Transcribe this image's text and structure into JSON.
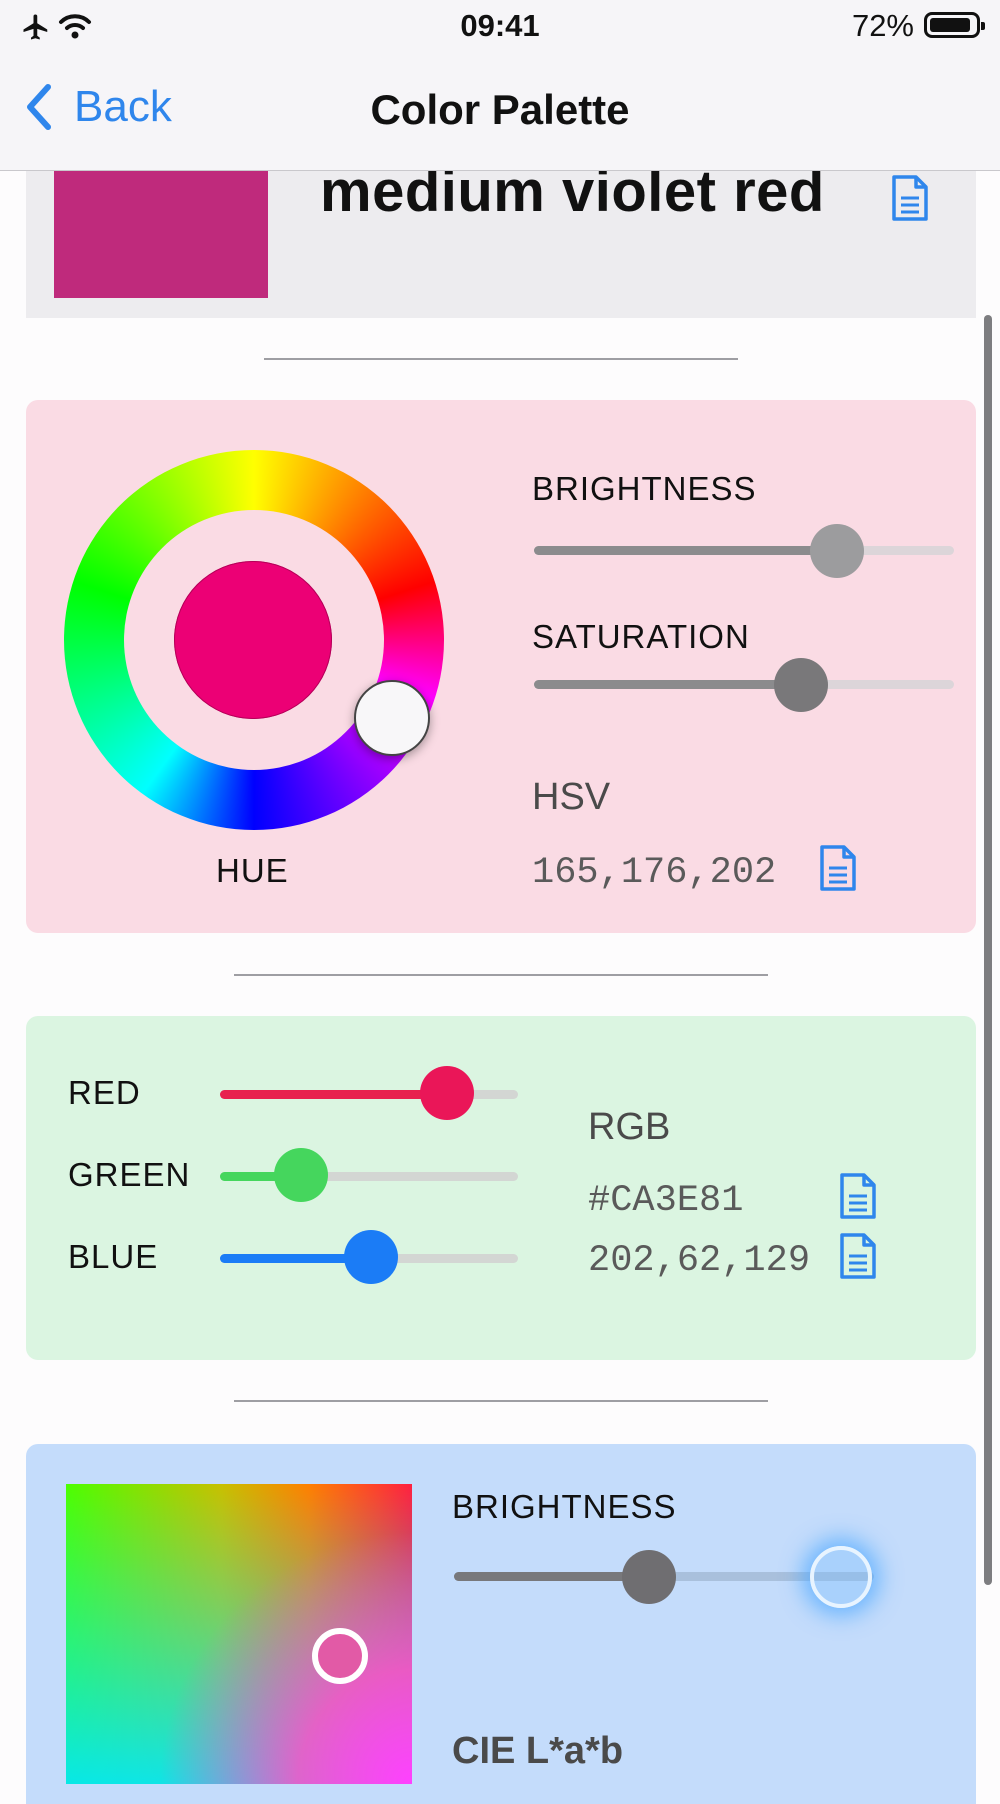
{
  "status": {
    "time": "09:41",
    "battery": "72%"
  },
  "nav": {
    "back_label": "Back",
    "title": "Color Palette"
  },
  "header": {
    "color_name": "medium violet red",
    "swatch_color": "#bf2a7c"
  },
  "hsv": {
    "hue_label": "HUE",
    "brightness_label": "BRIGHTNESS",
    "saturation_label": "SATURATION",
    "section_title": "HSV",
    "value": "165,176,202",
    "preview_color": "#ec0075",
    "card_color": "#fadbe4"
  },
  "rgb": {
    "red_label": "RED",
    "green_label": "GREEN",
    "blue_label": "BLUE",
    "section_title": "RGB",
    "hex": "#CA3E81",
    "value": "202,62,129",
    "red_color": "#e8224f",
    "green_color": "#45d65d",
    "blue_color": "#1b7cf6",
    "card_color": "#dbf5e1"
  },
  "lab": {
    "brightness_label": "BRIGHTNESS",
    "section_title": "CIE L*a*b",
    "card_color": "#c4dcfb"
  }
}
